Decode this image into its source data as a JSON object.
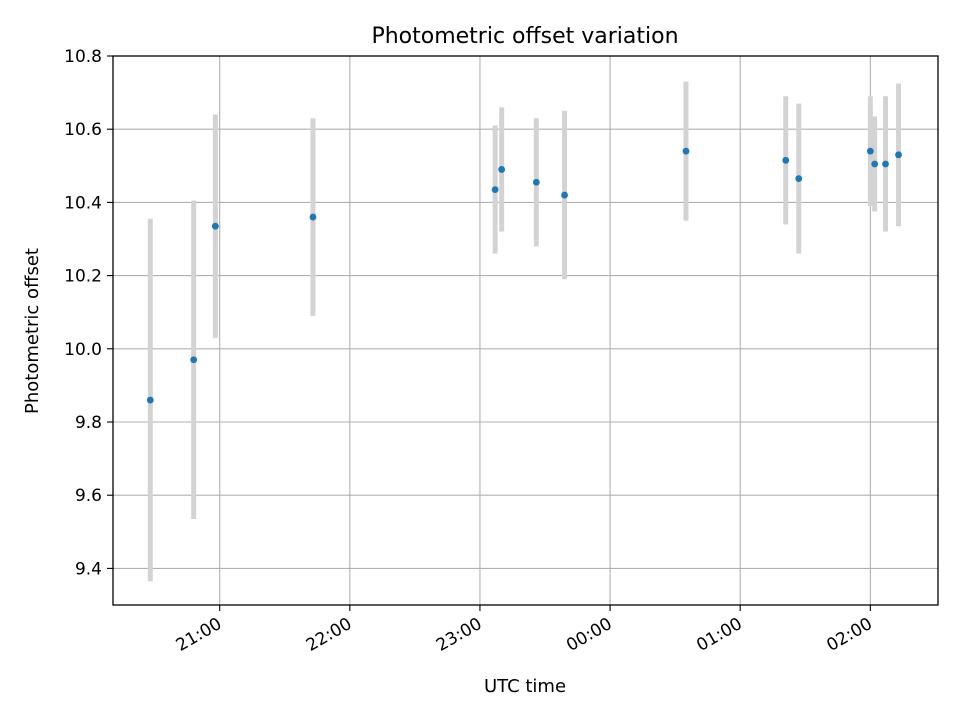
{
  "chart_data": {
    "type": "scatter",
    "title": "Photometric offset variation",
    "xlabel": "UTC time",
    "ylabel": "Photometric offset",
    "grid": true,
    "x_ticks": [
      "21:00",
      "22:00",
      "23:00",
      "00:00",
      "01:00",
      "02:00"
    ],
    "x_tick_hours": [
      21,
      22,
      23,
      24,
      25,
      26
    ],
    "xlim_hours": [
      20.18,
      26.52
    ],
    "ylim": [
      9.3,
      10.8
    ],
    "y_ticks": [
      9.4,
      9.6,
      9.8,
      10.0,
      10.2,
      10.4,
      10.6,
      10.8
    ],
    "y_tick_labels": [
      "9.4",
      "9.6",
      "9.8",
      "10.0",
      "10.2",
      "10.4",
      "10.6",
      "10.8"
    ],
    "point_color": "#1f77b4",
    "errorbar_color": "#d3d3d3",
    "points": [
      {
        "time": "20:28",
        "y": 9.86,
        "yerr": 0.495
      },
      {
        "time": "20:48",
        "y": 9.97,
        "yerr": 0.435
      },
      {
        "time": "20:58",
        "y": 10.335,
        "yerr": 0.305
      },
      {
        "time": "21:43",
        "y": 10.36,
        "yerr": 0.27
      },
      {
        "time": "23:07",
        "y": 10.435,
        "yerr": 0.175
      },
      {
        "time": "23:10",
        "y": 10.49,
        "yerr": 0.17
      },
      {
        "time": "23:26",
        "y": 10.455,
        "yerr": 0.175
      },
      {
        "time": "23:39",
        "y": 10.42,
        "yerr": 0.23
      },
      {
        "time": "00:35",
        "y": 10.54,
        "yerr": 0.19
      },
      {
        "time": "01:21",
        "y": 10.515,
        "yerr": 0.175
      },
      {
        "time": "01:27",
        "y": 10.465,
        "yerr": 0.205
      },
      {
        "time": "02:00",
        "y": 10.54,
        "yerr": 0.15
      },
      {
        "time": "02:02",
        "y": 10.505,
        "yerr": 0.13
      },
      {
        "time": "02:07",
        "y": 10.505,
        "yerr": 0.185
      },
      {
        "time": "02:13",
        "y": 10.53,
        "yerr": 0.195
      }
    ]
  }
}
